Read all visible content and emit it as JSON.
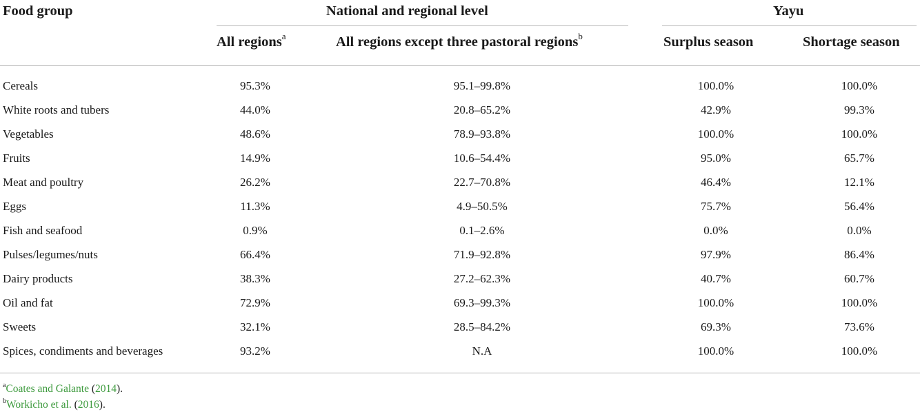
{
  "table": {
    "header": {
      "food_group": "Food group",
      "national_group": "National and regional level",
      "yayu_group": "Yayu",
      "col_all_regions": "All regions",
      "col_all_regions_sup": "a",
      "col_except_pastoral": "All regions except three pastoral regions",
      "col_except_pastoral_sup": "b",
      "col_surplus": "Surplus season",
      "col_shortage": "Shortage season"
    },
    "rows": [
      {
        "label": "Cereals",
        "all": "95.3%",
        "except": "95.1–99.8%",
        "surplus": "100.0%",
        "shortage": "100.0%"
      },
      {
        "label": "White roots and tubers",
        "all": "44.0%",
        "except": "20.8–65.2%",
        "surplus": "42.9%",
        "shortage": "99.3%"
      },
      {
        "label": "Vegetables",
        "all": "48.6%",
        "except": "78.9–93.8%",
        "surplus": "100.0%",
        "shortage": "100.0%"
      },
      {
        "label": "Fruits",
        "all": "14.9%",
        "except": "10.6–54.4%",
        "surplus": "95.0%",
        "shortage": "65.7%"
      },
      {
        "label": "Meat and poultry",
        "all": "26.2%",
        "except": "22.7–70.8%",
        "surplus": "46.4%",
        "shortage": "12.1%"
      },
      {
        "label": "Eggs",
        "all": "11.3%",
        "except": "4.9–50.5%",
        "surplus": "75.7%",
        "shortage": "56.4%"
      },
      {
        "label": "Fish and seafood",
        "all": "0.9%",
        "except": "0.1–2.6%",
        "surplus": "0.0%",
        "shortage": "0.0%"
      },
      {
        "label": "Pulses/legumes/nuts",
        "all": "66.4%",
        "except": "71.9–92.8%",
        "surplus": "97.9%",
        "shortage": "86.4%"
      },
      {
        "label": "Dairy products",
        "all": "38.3%",
        "except": "27.2–62.3%",
        "surplus": "40.7%",
        "shortage": "60.7%"
      },
      {
        "label": "Oil and fat",
        "all": "72.9%",
        "except": "69.3–99.3%",
        "surplus": "100.0%",
        "shortage": "100.0%"
      },
      {
        "label": "Sweets",
        "all": "32.1%",
        "except": "28.5–84.2%",
        "surplus": "69.3%",
        "shortage": "73.6%"
      },
      {
        "label": "Spices, condiments and beverages",
        "all": "93.2%",
        "except": "N.A",
        "surplus": "100.0%",
        "shortage": "100.0%"
      }
    ]
  },
  "footnotes": [
    {
      "marker": "a",
      "link_text": "Coates and Galante",
      "open": " (",
      "year": "2014",
      "close": ")."
    },
    {
      "marker": "b",
      "link_text": "Workicho et al.",
      "open": " (",
      "year": "2016",
      "close": ")."
    }
  ],
  "colors": {
    "link": "#3d9a3d",
    "rule": "#b5b5b5"
  }
}
